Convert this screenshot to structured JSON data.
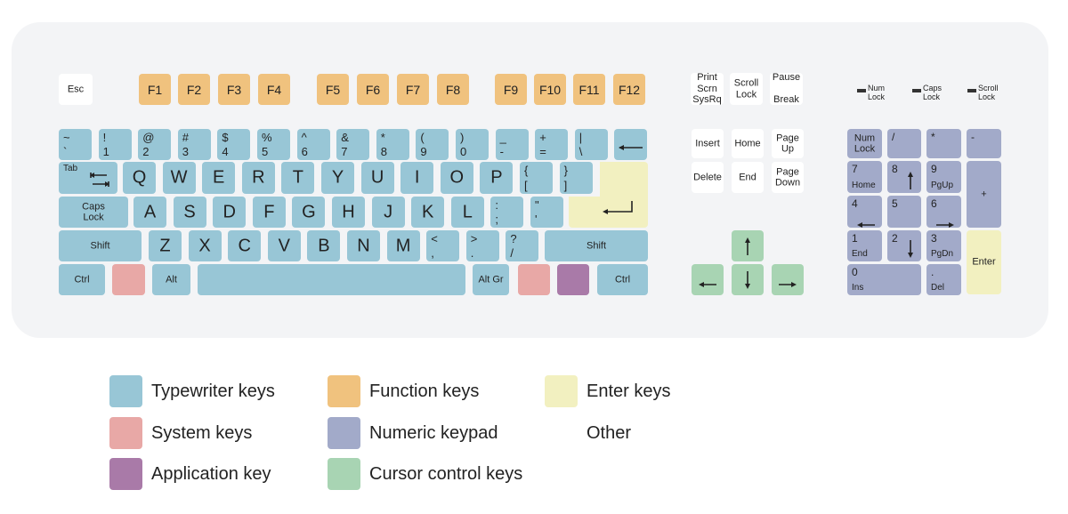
{
  "colors": {
    "typewriter": "#98c6d6",
    "function": "#f0c27e",
    "system": "#e8a8a6",
    "application": "#a97aa8",
    "numeric": "#a2aac9",
    "cursor": "#a8d4b3",
    "enter": "#f2f0c0",
    "other": "#ffffff"
  },
  "keys": [
    {
      "c": "Esc",
      "cat": "other"
    },
    {
      "c": "F1",
      "cat": "function",
      "f": 1
    },
    {
      "c": "F2",
      "cat": "function",
      "f": 1
    },
    {
      "c": "F3",
      "cat": "function",
      "f": 1
    },
    {
      "c": "F4",
      "cat": "function",
      "f": 1
    },
    {
      "c": "F5",
      "cat": "function",
      "f": 1
    },
    {
      "c": "F6",
      "cat": "function",
      "f": 1
    },
    {
      "c": "F7",
      "cat": "function",
      "f": 1
    },
    {
      "c": "F8",
      "cat": "function",
      "f": 1
    },
    {
      "c": "F9",
      "cat": "function",
      "f": 1
    },
    {
      "c": "F10",
      "cat": "function",
      "f": 1
    },
    {
      "c": "F11",
      "cat": "function",
      "f": 1
    },
    {
      "c": "F12",
      "cat": "function",
      "f": 1
    },
    {
      "c": "Print\nScrn\nSysRq",
      "cat": "other"
    },
    {
      "c": "Scroll\nLock",
      "cat": "other"
    },
    {
      "c": "Pause\n\nBreak",
      "cat": "other"
    },
    {
      "t": "~",
      "b": "`",
      "cat": "typewriter"
    },
    {
      "t": "!",
      "b": "1",
      "cat": "typewriter"
    },
    {
      "t": "@",
      "b": "2",
      "cat": "typewriter"
    },
    {
      "t": "#",
      "b": "3",
      "cat": "typewriter"
    },
    {
      "t": "$",
      "b": "4",
      "cat": "typewriter"
    },
    {
      "t": "%",
      "b": "5",
      "cat": "typewriter"
    },
    {
      "t": "^",
      "b": "6",
      "cat": "typewriter"
    },
    {
      "t": "&",
      "b": "7",
      "cat": "typewriter"
    },
    {
      "t": "*",
      "b": "8",
      "cat": "typewriter"
    },
    {
      "t": "(",
      "b": "9",
      "cat": "typewriter"
    },
    {
      "t": ")",
      "b": "0",
      "cat": "typewriter"
    },
    {
      "t": "_",
      "b": "-",
      "cat": "typewriter"
    },
    {
      "t": "+",
      "b": "=",
      "cat": "typewriter"
    },
    {
      "t": "|",
      "b": "\\",
      "cat": "typewriter"
    },
    {
      "icon": "backspace-arrow",
      "cat": "typewriter"
    },
    {
      "t": "Tab",
      "icon": "tab-arrows",
      "cat": "typewriter",
      "small": 1
    },
    {
      "c": "Q",
      "cat": "typewriter",
      "big": 1
    },
    {
      "c": "W",
      "cat": "typewriter",
      "big": 1
    },
    {
      "c": "E",
      "cat": "typewriter",
      "big": 1
    },
    {
      "c": "R",
      "cat": "typewriter",
      "big": 1
    },
    {
      "c": "T",
      "cat": "typewriter",
      "big": 1
    },
    {
      "c": "Y",
      "cat": "typewriter",
      "big": 1
    },
    {
      "c": "U",
      "cat": "typewriter",
      "big": 1
    },
    {
      "c": "I",
      "cat": "typewriter",
      "big": 1
    },
    {
      "c": "O",
      "cat": "typewriter",
      "big": 1
    },
    {
      "c": "P",
      "cat": "typewriter",
      "big": 1
    },
    {
      "t": "{",
      "b": "[",
      "cat": "typewriter"
    },
    {
      "t": "}",
      "b": "]",
      "cat": "typewriter"
    },
    {
      "icon": "return-arrow",
      "cat": "enter"
    },
    {
      "c": "Caps\nLock",
      "cat": "typewriter"
    },
    {
      "c": "A",
      "cat": "typewriter",
      "big": 1
    },
    {
      "c": "S",
      "cat": "typewriter",
      "big": 1
    },
    {
      "c": "D",
      "cat": "typewriter",
      "big": 1
    },
    {
      "c": "F",
      "cat": "typewriter",
      "big": 1
    },
    {
      "c": "G",
      "cat": "typewriter",
      "big": 1
    },
    {
      "c": "H",
      "cat": "typewriter",
      "big": 1
    },
    {
      "c": "J",
      "cat": "typewriter",
      "big": 1
    },
    {
      "c": "K",
      "cat": "typewriter",
      "big": 1
    },
    {
      "c": "L",
      "cat": "typewriter",
      "big": 1
    },
    {
      "t": ":",
      "b": ";",
      "cat": "typewriter"
    },
    {
      "t": "\"",
      "b": "'",
      "cat": "typewriter"
    },
    {
      "c": "Shift",
      "cat": "typewriter"
    },
    {
      "c": "Z",
      "cat": "typewriter",
      "big": 1
    },
    {
      "c": "X",
      "cat": "typewriter",
      "big": 1
    },
    {
      "c": "C",
      "cat": "typewriter",
      "big": 1
    },
    {
      "c": "V",
      "cat": "typewriter",
      "big": 1
    },
    {
      "c": "B",
      "cat": "typewriter",
      "big": 1
    },
    {
      "c": "N",
      "cat": "typewriter",
      "big": 1
    },
    {
      "c": "M",
      "cat": "typewriter",
      "big": 1
    },
    {
      "t": "<",
      "b": ",",
      "cat": "typewriter"
    },
    {
      "t": ">",
      "b": ".",
      "cat": "typewriter"
    },
    {
      "t": "?",
      "b": "/",
      "cat": "typewriter"
    },
    {
      "c": "Shift",
      "cat": "typewriter"
    },
    {
      "c": "Ctrl",
      "cat": "typewriter"
    },
    {
      "cat": "system"
    },
    {
      "c": "Alt",
      "cat": "typewriter"
    },
    {
      "cat": "typewriter"
    },
    {
      "c": "Alt Gr",
      "cat": "typewriter"
    },
    {
      "cat": "system"
    },
    {
      "cat": "application"
    },
    {
      "c": "Ctrl",
      "cat": "typewriter"
    },
    {
      "c": "Insert",
      "cat": "other"
    },
    {
      "c": "Home",
      "cat": "other"
    },
    {
      "c": "Page\nUp",
      "cat": "other"
    },
    {
      "c": "Delete",
      "cat": "other"
    },
    {
      "c": "End",
      "cat": "other"
    },
    {
      "c": "Page\nDown",
      "cat": "other"
    },
    {
      "icon": "arrow-up",
      "cat": "cursor"
    },
    {
      "icon": "arrow-left",
      "cat": "cursor"
    },
    {
      "icon": "arrow-down",
      "cat": "cursor"
    },
    {
      "icon": "arrow-right",
      "cat": "cursor"
    },
    {
      "c": "Num\nLock",
      "cat": "numeric"
    },
    {
      "t": "/",
      "cat": "numeric",
      "np": 1
    },
    {
      "t": "*",
      "cat": "numeric",
      "np": 1
    },
    {
      "t": "-",
      "cat": "numeric",
      "np": 1
    },
    {
      "t": "7",
      "b": "Home",
      "cat": "numeric",
      "np": 1
    },
    {
      "t": "8",
      "icon": "arrow-up",
      "cat": "numeric",
      "np": 1
    },
    {
      "t": "9",
      "b": "PgUp",
      "cat": "numeric",
      "np": 1
    },
    {
      "c": "+",
      "cat": "numeric"
    },
    {
      "t": "4",
      "icon": "arrow-left",
      "cat": "numeric",
      "np": 1
    },
    {
      "t": "5",
      "cat": "numeric",
      "np": 1
    },
    {
      "t": "6",
      "icon": "arrow-right",
      "cat": "numeric",
      "np": 1
    },
    {
      "t": "1",
      "b": "End",
      "cat": "numeric",
      "np": 1
    },
    {
      "t": "2",
      "icon": "arrow-down",
      "cat": "numeric",
      "np": 1
    },
    {
      "t": "3",
      "b": "PgDn",
      "cat": "numeric",
      "np": 1
    },
    {
      "c": "Enter",
      "cat": "enter"
    },
    {
      "t": "0",
      "b": "Ins",
      "cat": "numeric",
      "np": 1
    },
    {
      "t": ".",
      "b": "Del",
      "cat": "numeric",
      "np": 1
    }
  ],
  "indicators": [
    "Num\nLock",
    "Caps\nLock",
    "Scroll\nLock"
  ],
  "legend": [
    {
      "label": "Typewriter keys",
      "cat": "typewriter"
    },
    {
      "label": "System keys",
      "cat": "system"
    },
    {
      "label": "Application key",
      "cat": "application"
    },
    {
      "label": "Function keys",
      "cat": "function"
    },
    {
      "label": "Numeric keypad",
      "cat": "numeric"
    },
    {
      "label": "Cursor control keys",
      "cat": "cursor"
    },
    {
      "label": "Enter keys",
      "cat": "enter"
    },
    {
      "label": "Other",
      "cat": "other"
    }
  ]
}
